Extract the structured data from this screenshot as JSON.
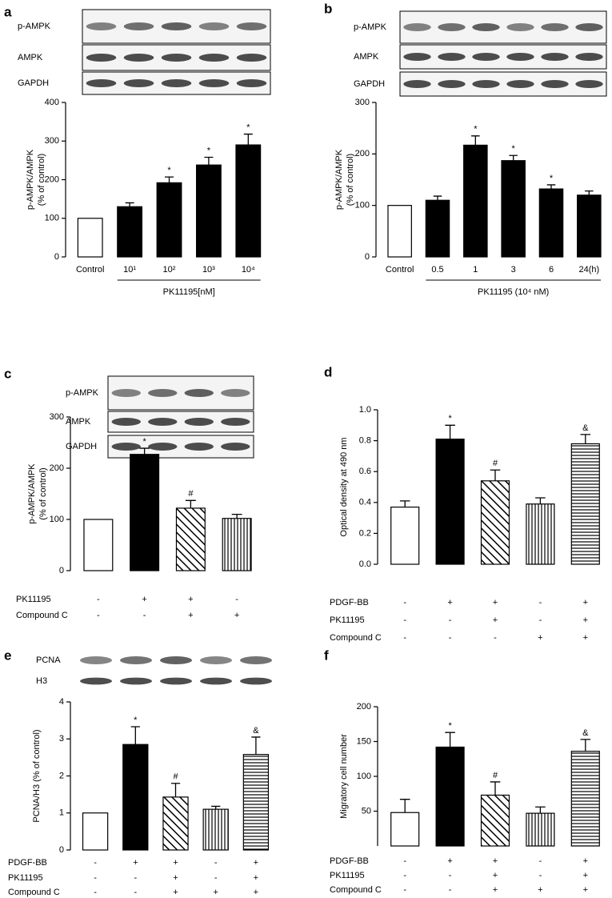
{
  "chart_data": [
    {
      "type": "bar",
      "panel": "a",
      "blots": [
        "p-AMPK",
        "AMPK",
        "GAPDH"
      ],
      "ylabel": [
        "p-AMPK/AMPK",
        "(% of control)"
      ],
      "categories": [
        "Control",
        "10¹",
        "10²",
        "10³",
        "10⁴"
      ],
      "group_label": "PK11195[nM]",
      "values": [
        100,
        130,
        192,
        238,
        290
      ],
      "errors": [
        null,
        10,
        15,
        20,
        28
      ],
      "annotations": [
        null,
        null,
        "*",
        "*",
        "*"
      ],
      "fills": [
        "white",
        "black",
        "black",
        "black",
        "black"
      ],
      "ylim": [
        0,
        400
      ],
      "yticks": [
        0,
        100,
        200,
        300,
        400
      ]
    },
    {
      "type": "bar",
      "panel": "b",
      "blots": [
        "p-AMPK",
        "AMPK",
        "GAPDH"
      ],
      "ylabel": [
        "p-AMPK/AMPK",
        "(% of control)"
      ],
      "categories": [
        "Control",
        "0.5",
        "1",
        "3",
        "6",
        "24(h)"
      ],
      "group_label": "PK11195 (10⁴ nM)",
      "values": [
        100,
        110,
        217,
        187,
        132,
        120
      ],
      "errors": [
        null,
        8,
        18,
        10,
        8,
        8
      ],
      "annotations": [
        null,
        null,
        "*",
        "*",
        "*",
        null
      ],
      "fills": [
        "white",
        "black",
        "black",
        "black",
        "black",
        "black"
      ],
      "ylim": [
        0,
        300
      ],
      "yticks": [
        0,
        100,
        200,
        300
      ]
    },
    {
      "type": "bar",
      "panel": "c",
      "blots": [
        "p-AMPK",
        "AMPK",
        "GAPDH"
      ],
      "ylabel": [
        "p-AMPK/AMPK",
        "(% of control)"
      ],
      "values": [
        100,
        227,
        122,
        102
      ],
      "errors": [
        null,
        12,
        15,
        8
      ],
      "annotations": [
        null,
        "*",
        "#",
        null
      ],
      "fills": [
        "white",
        "black",
        "diagonal",
        "vertical"
      ],
      "ylim": [
        0,
        300
      ],
      "yticks": [
        0,
        100,
        200,
        300
      ],
      "conditions": [
        {
          "name": "PK11195",
          "values": [
            "-",
            "+",
            "+",
            "-"
          ]
        },
        {
          "name": "Compound C",
          "values": [
            "-",
            "-",
            "+",
            "+"
          ]
        }
      ]
    },
    {
      "type": "bar",
      "panel": "d",
      "ylabel": [
        "Optical density at 490 nm"
      ],
      "values": [
        0.37,
        0.81,
        0.54,
        0.39,
        0.78
      ],
      "errors": [
        0.04,
        0.09,
        0.07,
        0.04,
        0.06
      ],
      "annotations": [
        null,
        "*",
        "#",
        null,
        "&"
      ],
      "fills": [
        "white",
        "black",
        "diagonal",
        "vertical",
        "horizontal"
      ],
      "ylim": [
        0,
        1.0
      ],
      "yticks": [
        {
          "value": 0,
          "label": "0.0"
        },
        0.2,
        0.4,
        0.6,
        0.8,
        {
          "value": 1.0,
          "label": "1.0"
        }
      ],
      "conditions": [
        {
          "name": "PDGF-BB",
          "values": [
            "-",
            "+",
            "+",
            "-",
            "+"
          ]
        },
        {
          "name": "PK11195",
          "values": [
            "-",
            "-",
            "+",
            "-",
            "+"
          ]
        },
        {
          "name": "Compound C",
          "values": [
            "-",
            "-",
            "-",
            "+",
            "+"
          ]
        }
      ]
    },
    {
      "type": "bar",
      "panel": "e",
      "blots": [
        "PCNA",
        "H3"
      ],
      "ylabel": [
        "PCNA/H3 (% of control)"
      ],
      "values": [
        1.0,
        2.85,
        1.43,
        1.1,
        2.58
      ],
      "errors": [
        null,
        0.48,
        0.37,
        0.08,
        0.47
      ],
      "annotations": [
        null,
        "*",
        "#",
        null,
        "&"
      ],
      "fills": [
        "white",
        "black",
        "diagonal",
        "vertical",
        "horizontal"
      ],
      "ylim": [
        0,
        4
      ],
      "yticks": [
        0,
        1,
        2,
        3,
        4
      ],
      "conditions": [
        {
          "name": "PDGF-BB",
          "values": [
            "-",
            "+",
            "+",
            "-",
            "+"
          ]
        },
        {
          "name": "PK11195",
          "values": [
            "-",
            "-",
            "+",
            "-",
            "+"
          ]
        },
        {
          "name": "Compound C",
          "values": [
            "-",
            "-",
            "+",
            "+",
            "+"
          ]
        }
      ]
    },
    {
      "type": "bar",
      "panel": "f",
      "ylabel": [
        "Migratory cell number"
      ],
      "values": [
        48,
        142,
        73,
        47,
        136
      ],
      "errors": [
        19,
        21,
        19,
        9,
        17
      ],
      "annotations": [
        null,
        "*",
        "#",
        null,
        "&"
      ],
      "fills": [
        "white",
        "black",
        "diagonal",
        "vertical",
        "horizontal"
      ],
      "ylim": [
        0,
        200
      ],
      "yticks": [
        50,
        100,
        150,
        200
      ],
      "conditions": [
        {
          "name": "PDGF-BB",
          "values": [
            "-",
            "+",
            "+",
            "-",
            "+"
          ]
        },
        {
          "name": "PK11195",
          "values": [
            "-",
            "-",
            "+",
            "-",
            "+"
          ]
        },
        {
          "name": "Compound C",
          "values": [
            "-",
            "-",
            "+",
            "+",
            "+"
          ]
        }
      ]
    }
  ]
}
